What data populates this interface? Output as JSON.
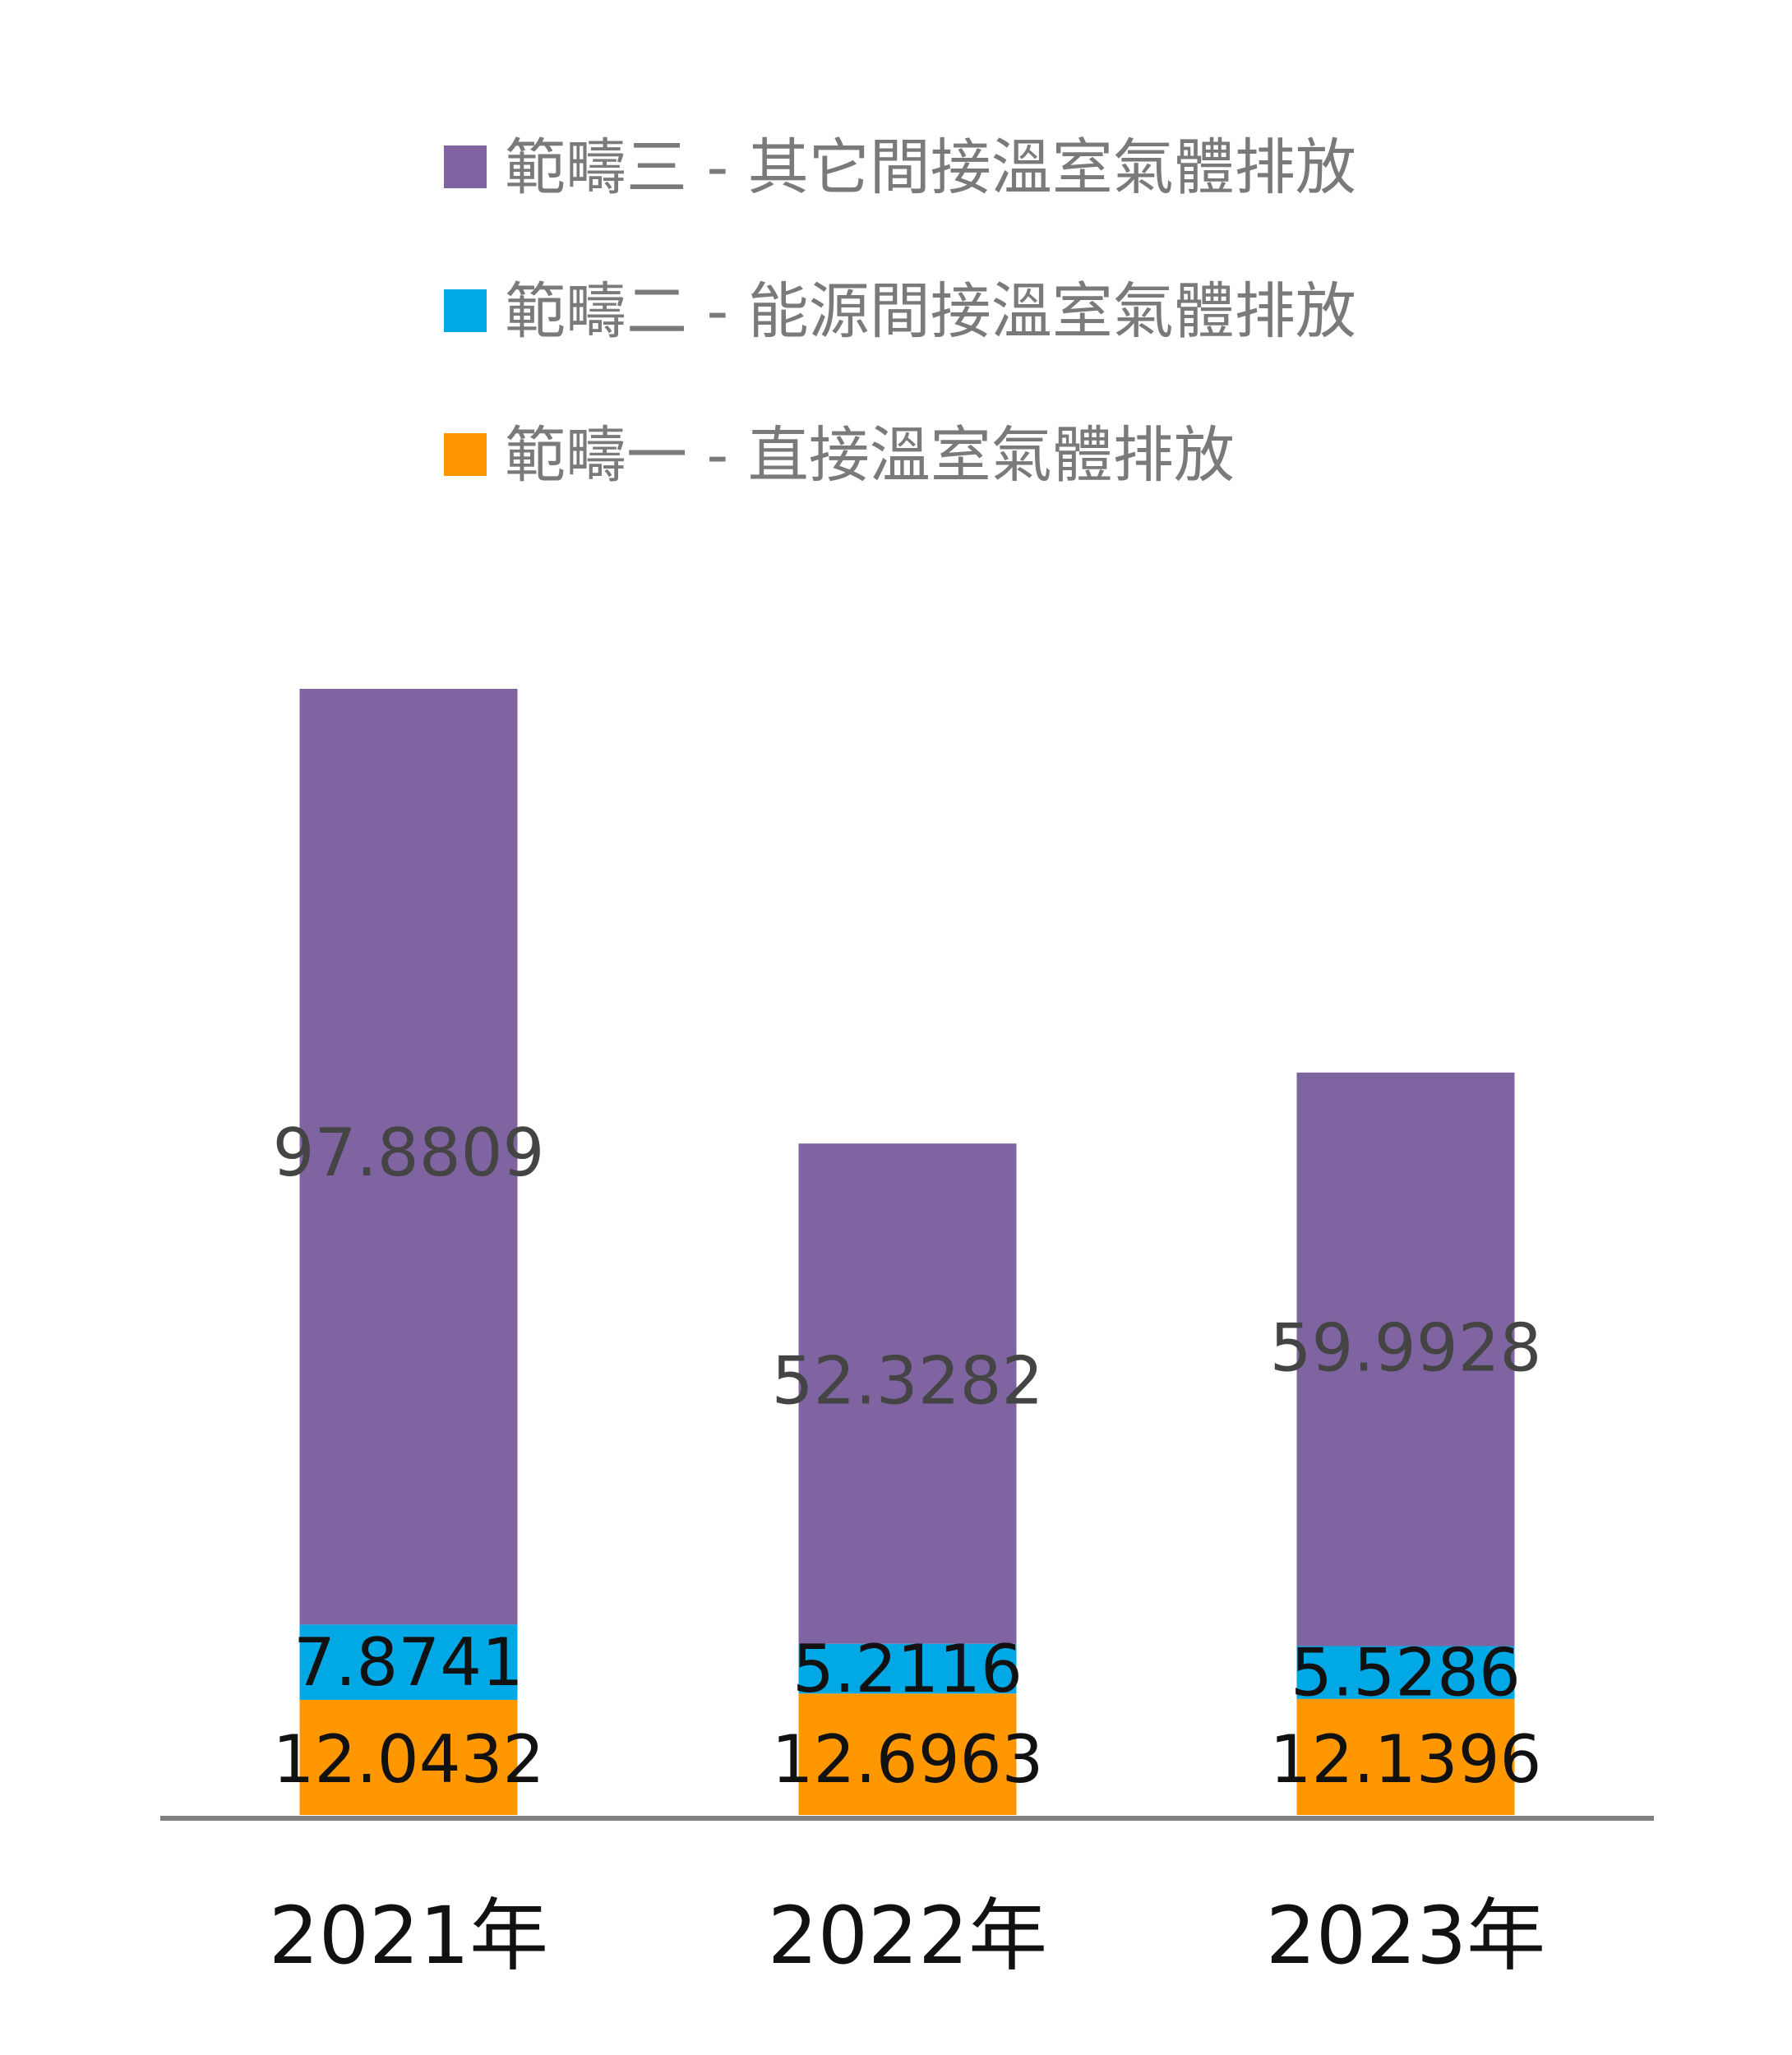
{
  "chart_data": {
    "type": "bar",
    "stacked": true,
    "categories": [
      "2021年",
      "2022年",
      "2023年"
    ],
    "series": [
      {
        "name": "範疇一 -  直接溫室氣體排放",
        "values": [
          12.0432,
          12.6963,
          12.1396
        ],
        "color": "#FF9800",
        "label_color": "#111111"
      },
      {
        "name": "範疇二 - 能源間接溫室氣體排放",
        "values": [
          7.8741,
          5.2116,
          5.5286
        ],
        "color": "#00A9E6",
        "label_color": "#111111"
      },
      {
        "name": "範疇三 - 其它間接溫室氣體排放",
        "values": [
          97.8809,
          52.3282,
          59.9928
        ],
        "color": "#8064A2",
        "label_color": "#444444"
      }
    ],
    "legend_order": [
      2,
      1,
      0
    ],
    "legend_position": "top-right",
    "grid": false,
    "axis_color": "#808080"
  }
}
